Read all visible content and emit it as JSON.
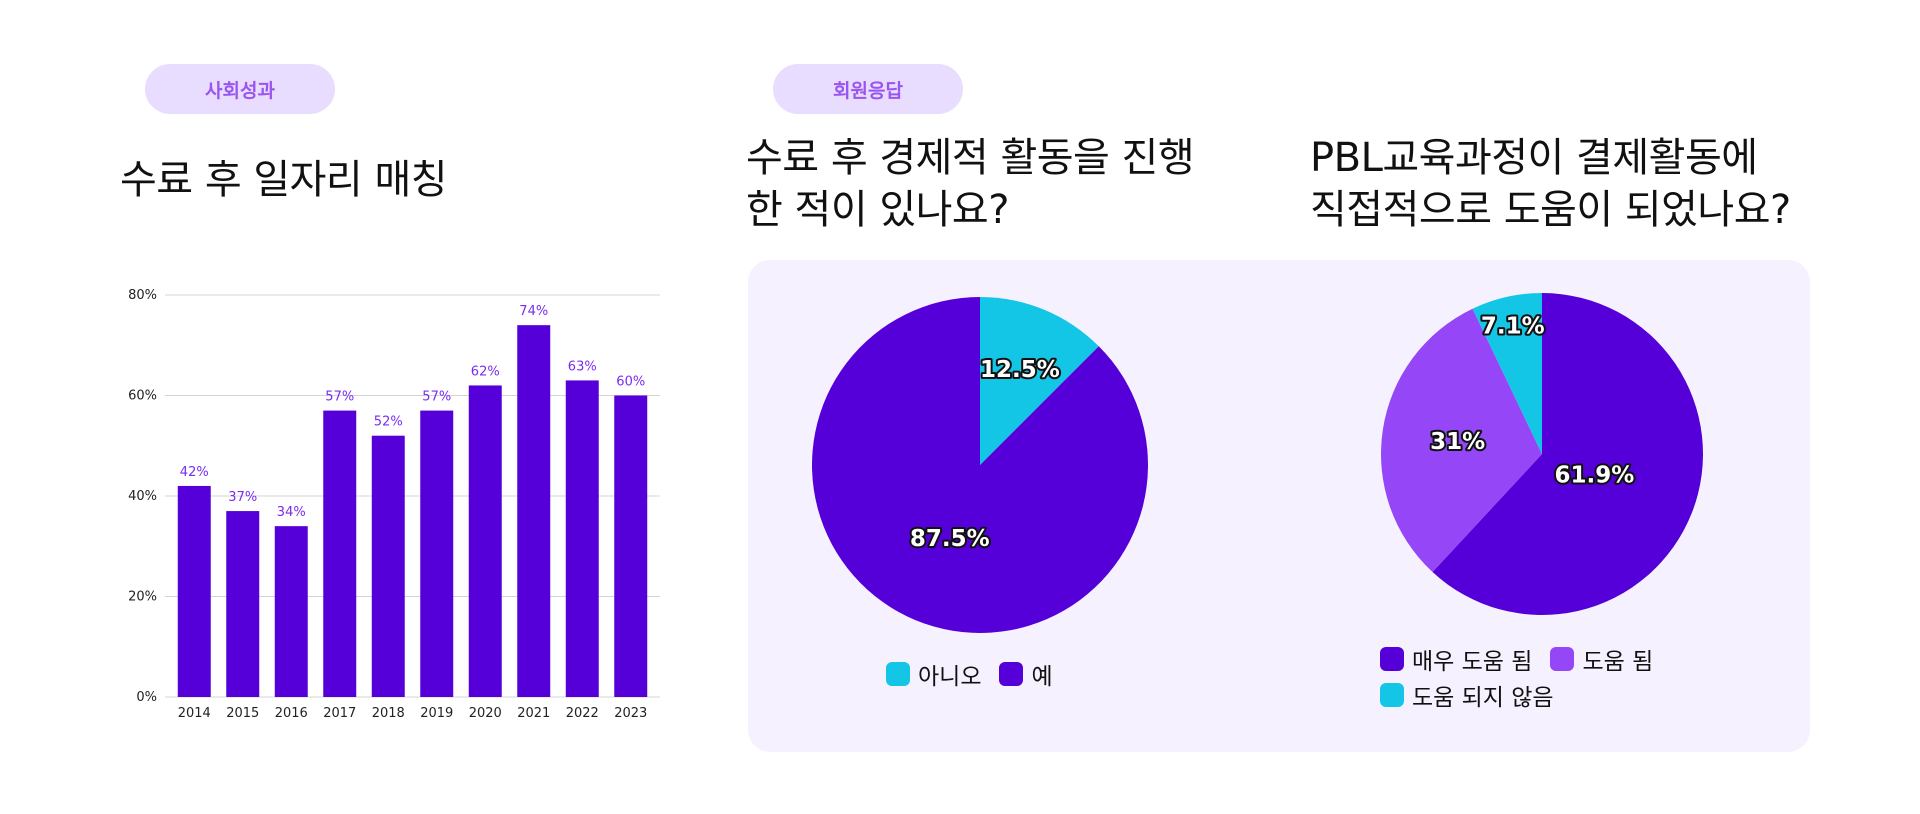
{
  "badges": {
    "left": "사회성과",
    "right": "회원응답"
  },
  "headings": {
    "bar": [
      "수료 후 일자리 매칭"
    ],
    "pie1": [
      "수료 후 경제적 활동을 진행",
      "한 적이 있나요?"
    ],
    "pie2": [
      "PBL교육과정이 결제활동에",
      "직접적으로 도움이 되었나요?"
    ]
  },
  "colors": {
    "purple": "#5500d8",
    "light_purple": "#9546f6",
    "cyan": "#13c6e6",
    "badge_bg": "#e8dcff",
    "badge_text": "#9a55f0",
    "panel_bg": "#f6f1ff"
  },
  "chart_data": [
    {
      "type": "bar",
      "categories": [
        "2014",
        "2015",
        "2016",
        "2017",
        "2018",
        "2019",
        "2020",
        "2021",
        "2022",
        "2023"
      ],
      "values": [
        42,
        37,
        34,
        57,
        52,
        57,
        62,
        74,
        63,
        60
      ],
      "data_labels": [
        "42%",
        "37%",
        "34%",
        "57%",
        "52%",
        "57%",
        "62%",
        "74%",
        "63%",
        "60%"
      ],
      "yticks": [
        0,
        20,
        40,
        60,
        80
      ],
      "ytick_labels": [
        "0%",
        "20%",
        "40%",
        "60%",
        "80%"
      ],
      "ylim": [
        0,
        80
      ],
      "grid": true,
      "color": "#5500d8"
    },
    {
      "type": "pie",
      "labels": [
        "아니오",
        "예"
      ],
      "values": [
        12.5,
        87.5
      ],
      "data_labels": [
        "12.5%",
        "87.5%"
      ],
      "colors": [
        "#13c6e6",
        "#5500d8"
      ],
      "legend": "bottom"
    },
    {
      "type": "pie",
      "labels": [
        "매우 도움 됨",
        "도움 됨",
        "도움 되지 않음"
      ],
      "values": [
        61.9,
        31,
        7.1
      ],
      "data_labels": [
        "61.9%",
        "31%",
        "7.1%"
      ],
      "colors": [
        "#5500d8",
        "#9546f6",
        "#13c6e6"
      ],
      "legend": "bottom"
    }
  ]
}
